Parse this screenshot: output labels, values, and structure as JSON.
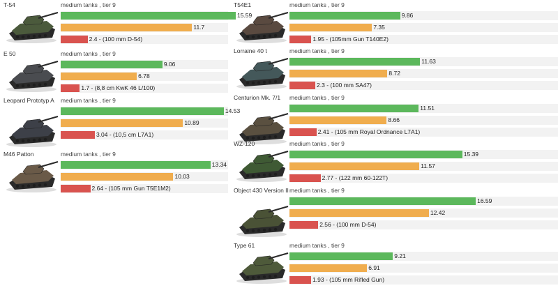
{
  "colors": {
    "dpm": "#5cb85c",
    "damage": "#f0ad4e",
    "reload": "#d9534f",
    "track": "#f2f2f2"
  },
  "chart_data": {
    "type": "bar",
    "scale_max": 17,
    "columns": [
      [
        {
          "name": "T-54",
          "subtitle": "medium tanks , tier 9",
          "values": [
            15.59,
            11.7,
            2.4
          ],
          "labels": [
            "15.59",
            "11.7",
            "2.4 - (100 mm D-54)"
          ],
          "hull": "#4b5a3c"
        },
        {
          "name": "E 50",
          "subtitle": "medium tanks , tier 9",
          "values": [
            9.06,
            6.78,
            1.7
          ],
          "labels": [
            "9.06",
            "6.78",
            "1.7 - (8,8 cm KwK 46 L/100)"
          ],
          "hull": "#4a4c50"
        },
        {
          "name": "Leopard Prototyp A",
          "subtitle": "medium tanks , tier 9",
          "values": [
            14.53,
            10.89,
            3.04
          ],
          "labels": [
            "14.53",
            "10.89",
            "3.04 - (10,5 cm L7A1)"
          ],
          "hull": "#3d4048"
        },
        {
          "name": "M46 Patton",
          "subtitle": "medium tanks , tier 9",
          "values": [
            13.34,
            10.03,
            2.64
          ],
          "labels": [
            "13.34",
            "10.03",
            "2.64 - (105 mm Gun T5E1M2)"
          ],
          "hull": "#6a5a48"
        }
      ],
      [
        {
          "name": "T54E1",
          "subtitle": "medium tanks , tier 9",
          "values": [
            9.86,
            7.35,
            1.95
          ],
          "labels": [
            "9.86",
            "7.35",
            "1.95 - (105mm Gun T140E2)"
          ],
          "hull": "#5a4a40"
        },
        {
          "name": "Lorraine 40 t",
          "subtitle": "medium tanks , tier 9",
          "values": [
            11.63,
            8.72,
            2.3
          ],
          "labels": [
            "11.63",
            "8.72",
            "2.3 - (100 mm SA47)"
          ],
          "hull": "#44585a"
        },
        {
          "name": "Centurion Mk. 7/1",
          "subtitle": "medium tanks , tier 9",
          "values": [
            11.51,
            8.66,
            2.41
          ],
          "labels": [
            "11.51",
            "8.66",
            "2.41 - (105 mm Royal Ordnance L7A1)"
          ],
          "hull": "#5a5040"
        },
        {
          "name": "WZ-120",
          "subtitle": "medium tanks , tier 9",
          "values": [
            15.39,
            11.57,
            2.77
          ],
          "labels": [
            "15.39",
            "11.57",
            "2.77 - (122 mm 60-122T)"
          ],
          "hull": "#3f5a34"
        },
        {
          "name": "Object 430 Version II",
          "subtitle": "medium tanks , tier 9",
          "values": [
            16.59,
            12.42,
            2.56
          ],
          "labels": [
            "16.59",
            "12.42",
            "2.56 - (100 mm D-54)"
          ],
          "hull": "#4a5236"
        },
        {
          "name": "Type 61",
          "subtitle": "medium tanks , tier 9",
          "values": [
            9.21,
            6.91,
            1.93
          ],
          "labels": [
            "9.21",
            "6.91",
            "1.93 - (105 mm Rifled Gun)"
          ],
          "hull": "#4e5a3a"
        }
      ]
    ]
  }
}
